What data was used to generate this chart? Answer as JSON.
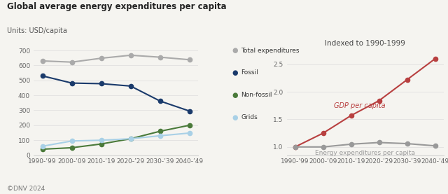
{
  "title": "Global average energy expenditures per capita",
  "subtitle_left": "Units: USD/capita",
  "subtitle_right": "Indexed to 1990-1999",
  "footer": "©DNV 2024",
  "x_labels": [
    "1990-’99",
    "2000-’09",
    "2010-’19",
    "2020-’29",
    "2030-’39",
    "2040-’49"
  ],
  "left": {
    "total": [
      630,
      622,
      648,
      668,
      655,
      638
    ],
    "fossil": [
      530,
      482,
      478,
      462,
      362,
      295
    ],
    "nonfossil": [
      40,
      50,
      75,
      110,
      160,
      200
    ],
    "grids": [
      60,
      95,
      100,
      110,
      130,
      148
    ],
    "colors": {
      "total": "#aaaaaa",
      "fossil": "#1a3a6b",
      "nonfossil": "#4a7a3a",
      "grids": "#a8d0e6"
    },
    "ylim": [
      0,
      700
    ],
    "yticks": [
      0,
      100,
      200,
      300,
      400,
      500,
      600,
      700
    ]
  },
  "right": {
    "gdp": [
      1.0,
      1.25,
      1.57,
      1.84,
      2.22,
      2.6
    ],
    "energy": [
      1.0,
      1.0,
      1.05,
      1.08,
      1.06,
      1.02
    ],
    "colors": {
      "gdp": "#b84040",
      "energy": "#999999"
    },
    "ylim": [
      0.85,
      2.75
    ],
    "yticks": [
      1.0,
      1.5,
      2.0,
      2.5
    ],
    "gdp_label": "GDP per capita",
    "energy_label": "Energy expenditures per capita"
  },
  "legend": {
    "total": "Total expenditures",
    "fossil": "Fossil",
    "nonfossil": "Non-fossil",
    "grids": "Grids"
  },
  "bg_color": "#f5f4f0"
}
